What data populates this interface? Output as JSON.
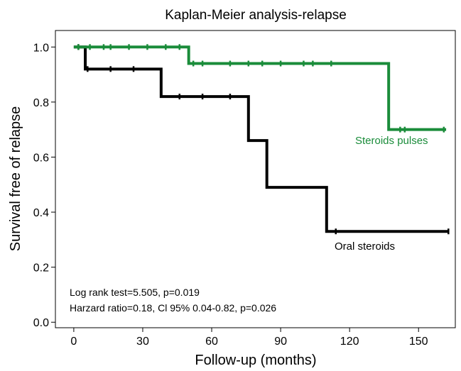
{
  "chart_data": {
    "type": "line",
    "title": "Kaplan-Meier analysis-relapse",
    "xlabel": "Follow-up (months)",
    "ylabel": "Survival free of relapse",
    "xlim": [
      -8,
      166
    ],
    "ylim": [
      -0.02,
      1.06
    ],
    "xticks": [
      0,
      30,
      60,
      90,
      120,
      150
    ],
    "yticks": [
      0.0,
      0.2,
      0.4,
      0.6,
      0.8,
      1.0
    ],
    "xtick_labels": [
      "0",
      "30",
      "60",
      "90",
      "120",
      "150"
    ],
    "ytick_labels": [
      "0.0",
      "0.2",
      "0.4",
      "0.6",
      "0.8",
      "1.0"
    ],
    "grid": false,
    "step": true,
    "series": [
      {
        "name": "Steroids pulses",
        "color": "#1a8c3a",
        "steps": [
          [
            0,
            1.0
          ],
          [
            50,
            0.94
          ],
          [
            137,
            0.7
          ],
          [
            162,
            0.7
          ]
        ],
        "censored": [
          [
            2,
            1.0
          ],
          [
            7,
            1.0
          ],
          [
            13,
            1.0
          ],
          [
            16,
            1.0
          ],
          [
            24,
            1.0
          ],
          [
            32,
            1.0
          ],
          [
            40,
            1.0
          ],
          [
            46,
            1.0
          ],
          [
            52,
            0.94
          ],
          [
            56,
            0.94
          ],
          [
            68,
            0.94
          ],
          [
            76,
            0.94
          ],
          [
            82,
            0.94
          ],
          [
            90,
            0.94
          ],
          [
            100,
            0.94
          ],
          [
            104,
            0.94
          ],
          [
            112,
            0.94
          ],
          [
            142,
            0.7
          ],
          [
            144,
            0.7
          ],
          [
            161,
            0.7
          ]
        ]
      },
      {
        "name": "Oral steroids",
        "color": "#000000",
        "steps": [
          [
            0,
            1.0
          ],
          [
            5,
            0.92
          ],
          [
            38,
            0.82
          ],
          [
            76,
            0.66
          ],
          [
            84,
            0.49
          ],
          [
            110,
            0.33
          ],
          [
            163,
            0.33
          ]
        ],
        "censored": [
          [
            2,
            1.0
          ],
          [
            6,
            0.92
          ],
          [
            16,
            0.92
          ],
          [
            26,
            0.92
          ],
          [
            46,
            0.82
          ],
          [
            56,
            0.82
          ],
          [
            68,
            0.82
          ],
          [
            114,
            0.33
          ],
          [
            163,
            0.33
          ]
        ]
      }
    ],
    "annotations": [
      "Log rank test=5.505, p=0.019",
      "Harzard ratio=0.18, Cl 95% 0.04-0.82, p=0.026"
    ]
  }
}
